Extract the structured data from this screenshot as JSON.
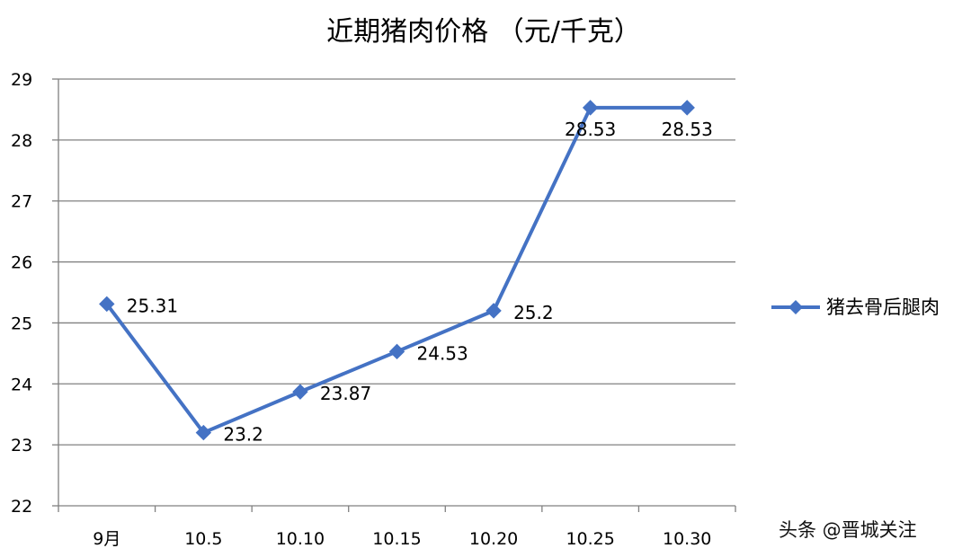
{
  "chart_data": {
    "type": "line",
    "title": "近期猪肉价格 （元/千克）",
    "categories": [
      "9月",
      "10.5",
      "10.10",
      "10.15",
      "10.20",
      "10.25",
      "10.30"
    ],
    "series": [
      {
        "name": "猪去骨后腿肉",
        "values": [
          25.31,
          23.2,
          23.87,
          24.53,
          25.2,
          28.53,
          28.53
        ],
        "data_labels": [
          "25.31",
          "23.2",
          "23.87",
          "24.53",
          "25.2",
          "28.53",
          "28.53"
        ],
        "color": "#4472C4",
        "marker": "diamond"
      }
    ],
    "ylim": [
      22,
      29
    ],
    "yticks": [
      "22",
      "23",
      "24",
      "25",
      "26",
      "27",
      "28",
      "29"
    ],
    "grid": true,
    "legend_position": "right"
  },
  "watermark": "头条 @晋城关注",
  "colors": {
    "series": "#4472C4",
    "grid": "#808080",
    "axis": "#808080"
  }
}
